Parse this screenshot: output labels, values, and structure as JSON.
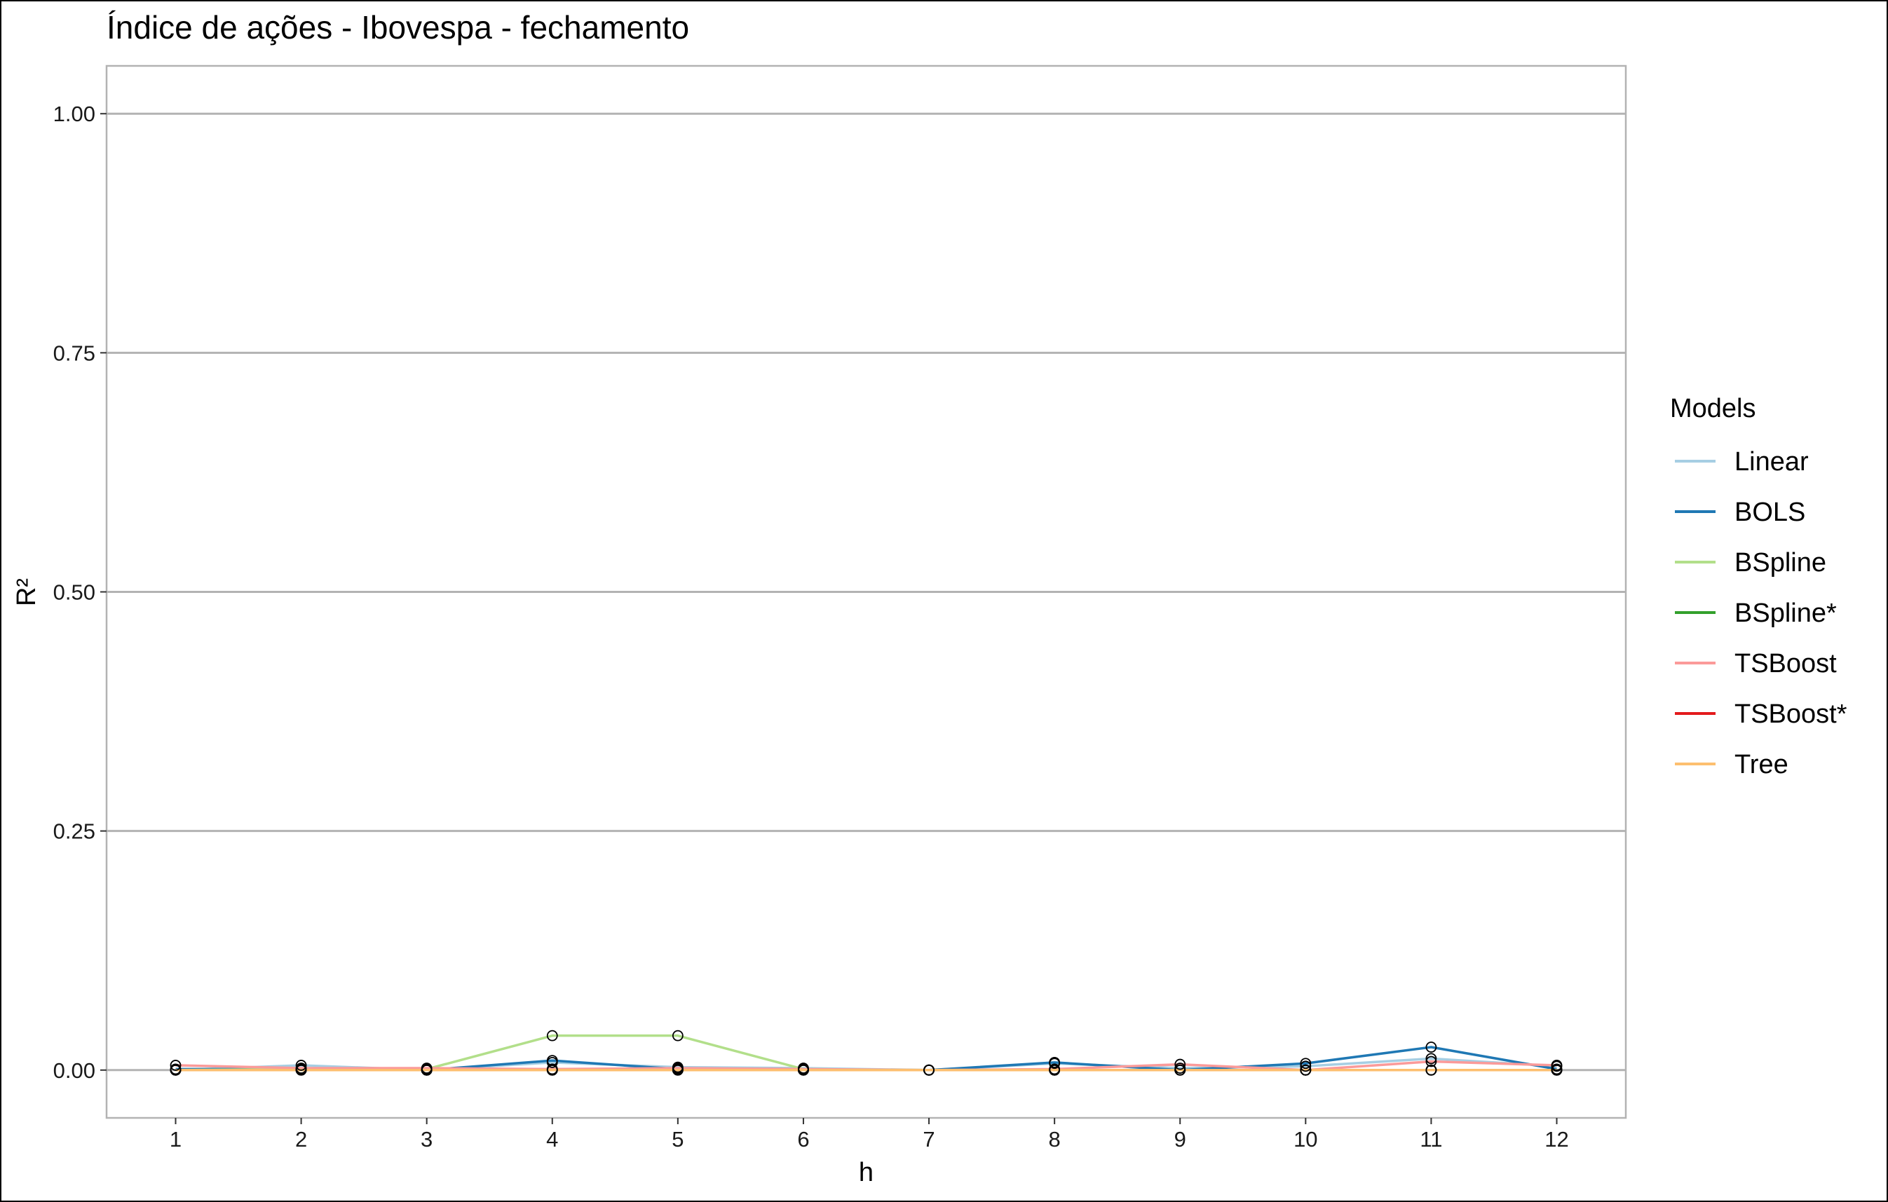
{
  "chart_data": {
    "type": "line",
    "title": "Índice de ações - Ibovespa - fechamento",
    "xlabel": "h",
    "ylabel": "R²",
    "x": [
      1,
      2,
      3,
      4,
      5,
      6,
      7,
      8,
      9,
      10,
      11,
      12
    ],
    "xlim": [
      0.45,
      12.55
    ],
    "ylim": [
      -0.05,
      1.05
    ],
    "yticks": [
      0.0,
      0.25,
      0.5,
      0.75,
      1.0
    ],
    "ytick_labels": [
      "0.00",
      "0.25",
      "0.50",
      "0.75",
      "1.00"
    ],
    "grid": "horizontal",
    "legend_title": "Models",
    "legend_position": "right",
    "series": [
      {
        "name": "Linear",
        "color": "#a6cee3",
        "values": [
          0.0,
          0.005,
          0.0,
          0.008,
          0.003,
          0.002,
          0.0,
          0.007,
          0.002,
          0.004,
          0.012,
          0.004
        ]
      },
      {
        "name": "BOLS",
        "color": "#1f78b4",
        "values": [
          0.001,
          0.001,
          0.0,
          0.01,
          0.001,
          0.0,
          0.0,
          0.008,
          0.0,
          0.007,
          0.024,
          0.001
        ]
      },
      {
        "name": "BSpline",
        "color": "#b2df8a",
        "values": [
          0.0,
          0.001,
          0.001,
          0.036,
          0.036,
          0.001,
          0.0,
          0.0,
          0.0,
          0.0,
          0.0,
          0.0
        ]
      },
      {
        "name": "BSpline*",
        "color": "#33a02c",
        "values": [
          0.0,
          0.0,
          0.0,
          0.0,
          0.0,
          0.0,
          0.0,
          0.0,
          0.0,
          0.0,
          0.0,
          0.0
        ]
      },
      {
        "name": "TSBoost",
        "color": "#fb9a99",
        "values": [
          0.005,
          0.002,
          0.002,
          0.001,
          0.002,
          0.001,
          0.0,
          0.001,
          0.006,
          0.0,
          0.009,
          0.005
        ]
      },
      {
        "name": "TSBoost*",
        "color": "#e31a1c",
        "values": [
          0.0,
          0.0,
          0.0,
          0.0,
          0.0,
          0.0,
          0.0,
          0.0,
          0.0,
          0.0,
          0.0,
          0.0
        ]
      },
      {
        "name": "Tree",
        "color": "#fdbf6f",
        "values": [
          0.0,
          0.0,
          0.0,
          0.0,
          0.0,
          0.0,
          0.0,
          0.0,
          0.0,
          0.0,
          0.0,
          0.0
        ]
      }
    ]
  }
}
